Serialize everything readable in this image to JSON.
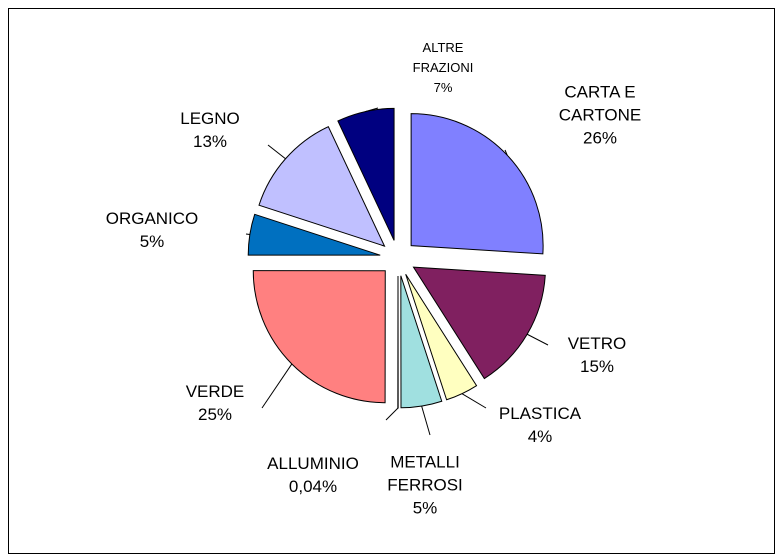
{
  "chart_data": {
    "type": "pie",
    "categories": [
      "CARTA E CARTONE",
      "VETRO",
      "PLASTICA",
      "METALLI FERROSI",
      "ALLUMINIO",
      "VERDE",
      "ORGANICO",
      "LEGNO",
      "ALTRE FRAZIONI"
    ],
    "values": [
      26,
      15,
      4,
      5,
      0.04,
      25,
      5,
      13,
      7
    ],
    "value_labels": [
      "26%",
      "15%",
      "4%",
      "5%",
      "0,04%",
      "25%",
      "5%",
      "13%",
      "7%"
    ],
    "colors": [
      "#8080ff",
      "#802060",
      "#ffffc0",
      "#a0e0e0",
      "#000080",
      "#ff8080",
      "#0070c0",
      "#c0c0ff",
      "#000080"
    ]
  }
}
